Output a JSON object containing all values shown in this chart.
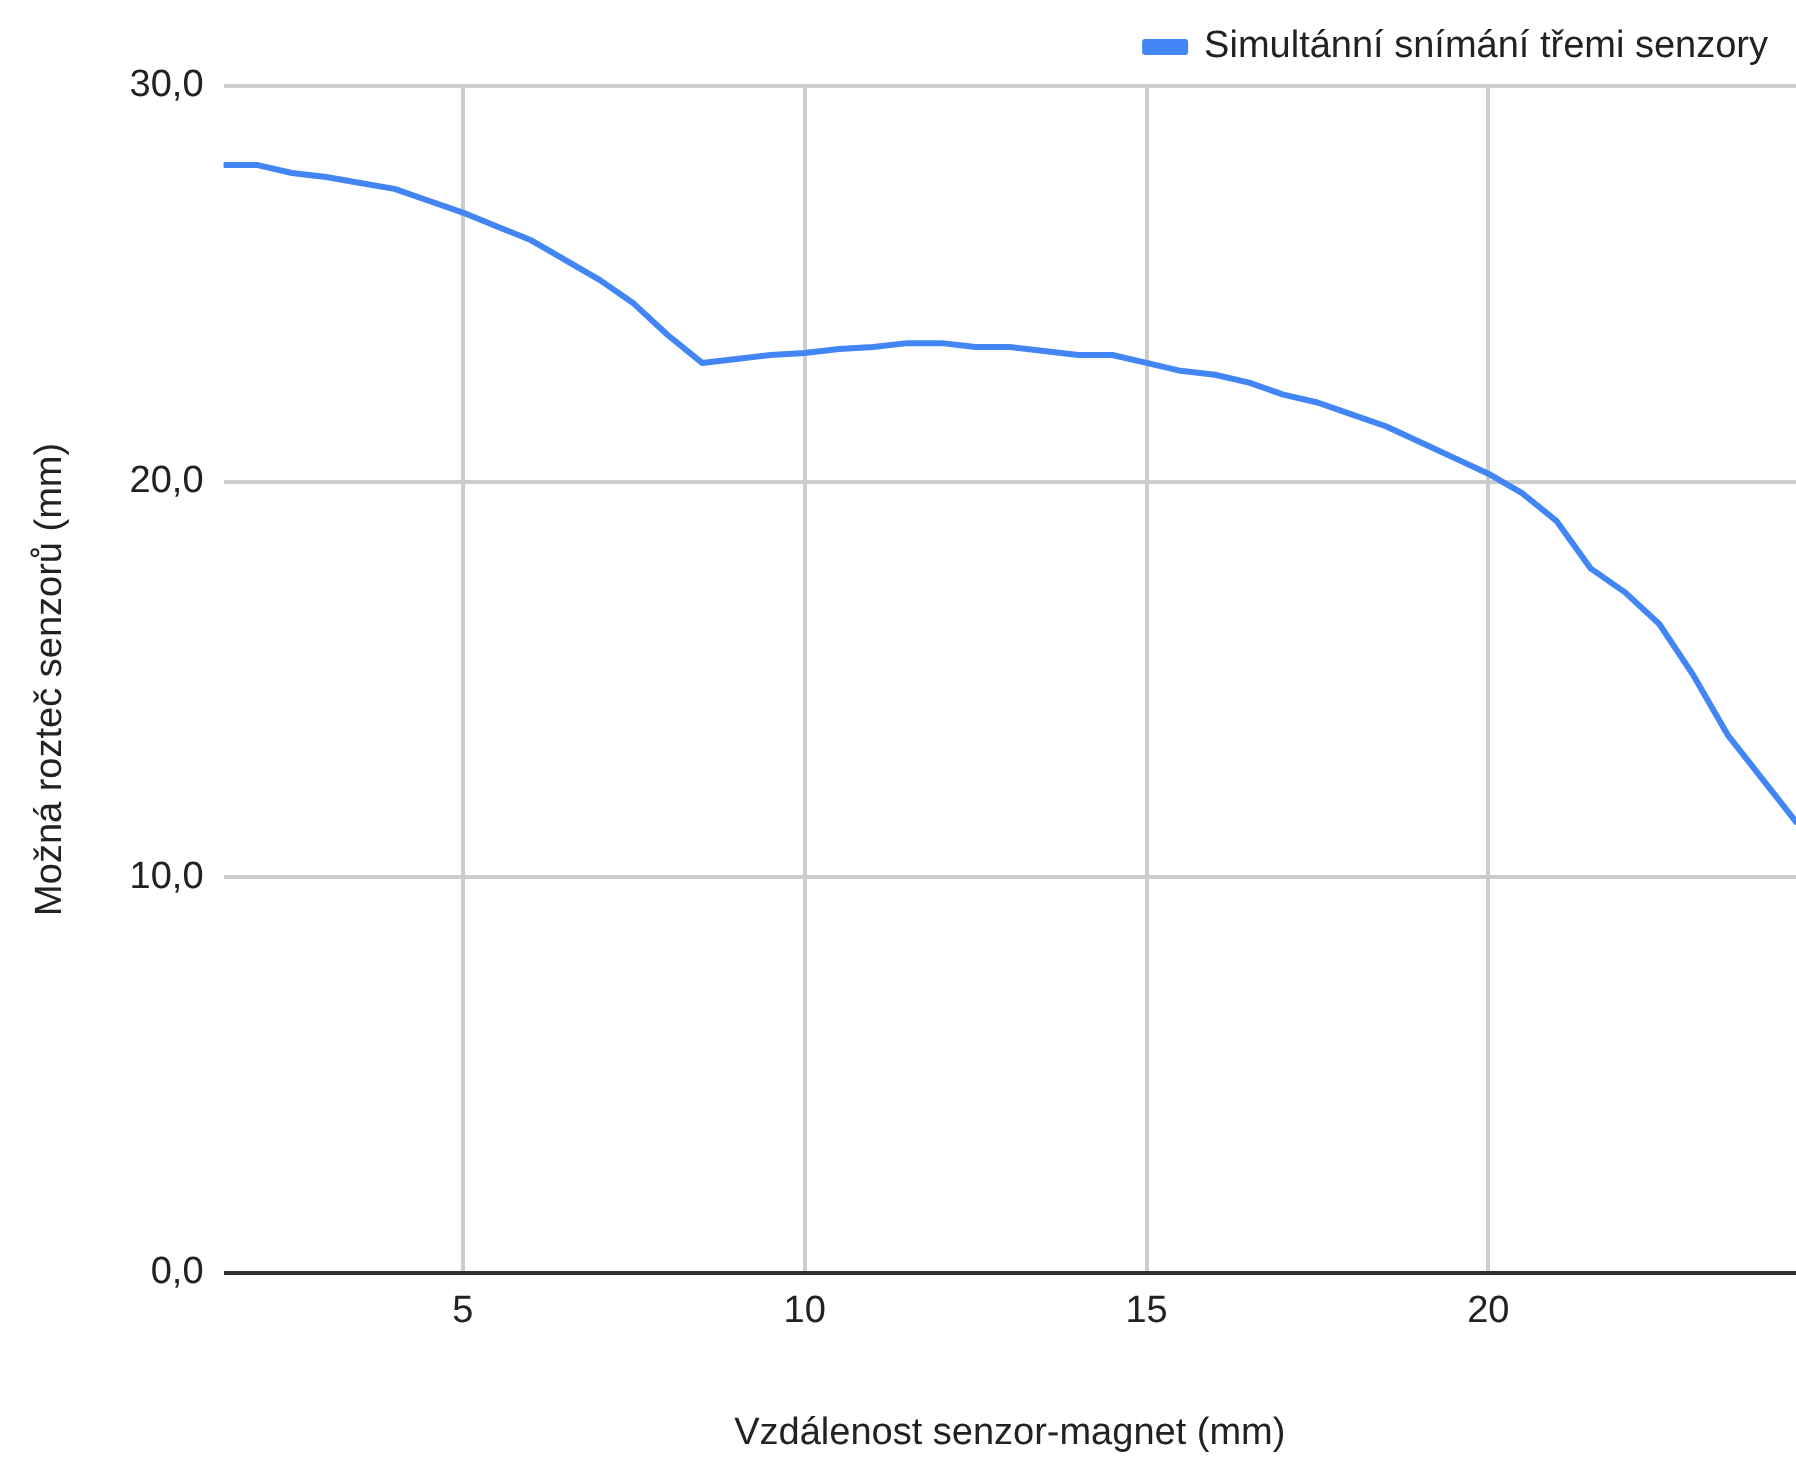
{
  "chart_data": {
    "type": "line",
    "xlabel": "Vzdálenost senzor-magnet (mm)",
    "ylabel": "Možná rozteč senzorů (mm)",
    "x": [
      1.5,
      2,
      2.5,
      3,
      3.5,
      4,
      4.5,
      5,
      5.5,
      6,
      6.5,
      7,
      7.5,
      8,
      8.5,
      9,
      9.5,
      10,
      10.5,
      11,
      11.5,
      12,
      12.5,
      13,
      13.5,
      14,
      14.5,
      15,
      15.5,
      16,
      16.5,
      17,
      17.5,
      18,
      18.5,
      19,
      19.5,
      20,
      20.5,
      21,
      21.5,
      22,
      22.5,
      23,
      23.5,
      24,
      24.5
    ],
    "series": [
      {
        "name": "Simultánní snímání třemi senzory",
        "color": "#4285f4",
        "values": [
          28.0,
          28.0,
          27.8,
          27.7,
          27.55,
          27.4,
          27.1,
          26.8,
          26.45,
          26.1,
          25.6,
          25.1,
          24.5,
          23.7,
          23.0,
          23.1,
          23.2,
          23.25,
          23.35,
          23.4,
          23.5,
          23.5,
          23.4,
          23.4,
          23.3,
          23.2,
          23.2,
          23.0,
          22.8,
          22.7,
          22.5,
          22.2,
          22.0,
          21.7,
          21.4,
          21.0,
          20.6,
          20.2,
          19.7,
          19.0,
          17.8,
          17.2,
          16.4,
          15.1,
          13.6,
          12.5,
          11.4
        ]
      }
    ],
    "xlim": [
      1.5,
      24.5
    ],
    "xticks": [
      5,
      10,
      15,
      20
    ],
    "ylim": [
      0,
      30
    ],
    "yticks": [
      {
        "value": 0,
        "label": "0,0"
      },
      {
        "value": 10,
        "label": "10,0"
      },
      {
        "value": 20,
        "label": "20,0"
      },
      {
        "value": 30,
        "label": "30,0"
      }
    ],
    "grid": true,
    "legend": "top right",
    "marker": "none",
    "line_style": "solid"
  }
}
